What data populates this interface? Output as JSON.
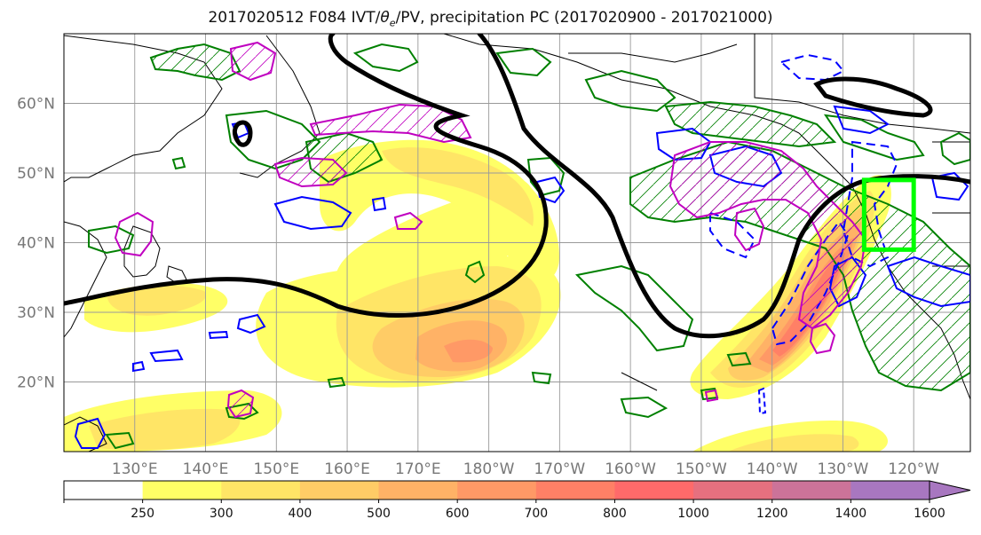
{
  "title": {
    "prefix": "2017020512 F084 IVT/",
    "theta": "θ",
    "sub": "e",
    "suffix": "/PV, precipitation PC (2017020900 - 2017021000)"
  },
  "map": {
    "projection": "PlateCarree",
    "lon_range_east": [
      120,
      248
    ],
    "lat_range": [
      10,
      70
    ],
    "lon_ticks": [
      "130°E",
      "140°E",
      "150°E",
      "160°E",
      "170°E",
      "180°W",
      "170°W",
      "160°W",
      "150°W",
      "140°W",
      "130°W",
      "120°W"
    ],
    "lat_ticks": [
      "20°N",
      "30°N",
      "40°N",
      "50°N",
      "60°N"
    ],
    "grid": true,
    "box_color": "#00ff00",
    "box_bounds": {
      "lon_w": -127,
      "lon_e": -120,
      "lat_s": 39,
      "lat_n": 49
    }
  },
  "contours": {
    "ivt_fill_colors": [
      "#ffff66",
      "#ffe566",
      "#ffcc66",
      "#ffb266",
      "#ff9966",
      "#ff8066",
      "#ff6a6a",
      "#e6707f",
      "#cc7399",
      "#a877c0"
    ],
    "theta_e_color": "#000000",
    "pv_color": "#c000c0",
    "precip_pos_color": "#008000",
    "precip_neg_color": "#0000ff"
  },
  "colorbar": {
    "levels": [
      "250",
      "300",
      "400",
      "500",
      "600",
      "700",
      "800",
      "1000",
      "1200",
      "1400",
      "1600"
    ],
    "colors": [
      "#ffffff",
      "#ffff66",
      "#ffe566",
      "#ffcc66",
      "#ffb266",
      "#ff9966",
      "#ff8066",
      "#ff6a6a",
      "#e6707f",
      "#cc7399",
      "#a877c0",
      "#a877c0"
    ]
  }
}
